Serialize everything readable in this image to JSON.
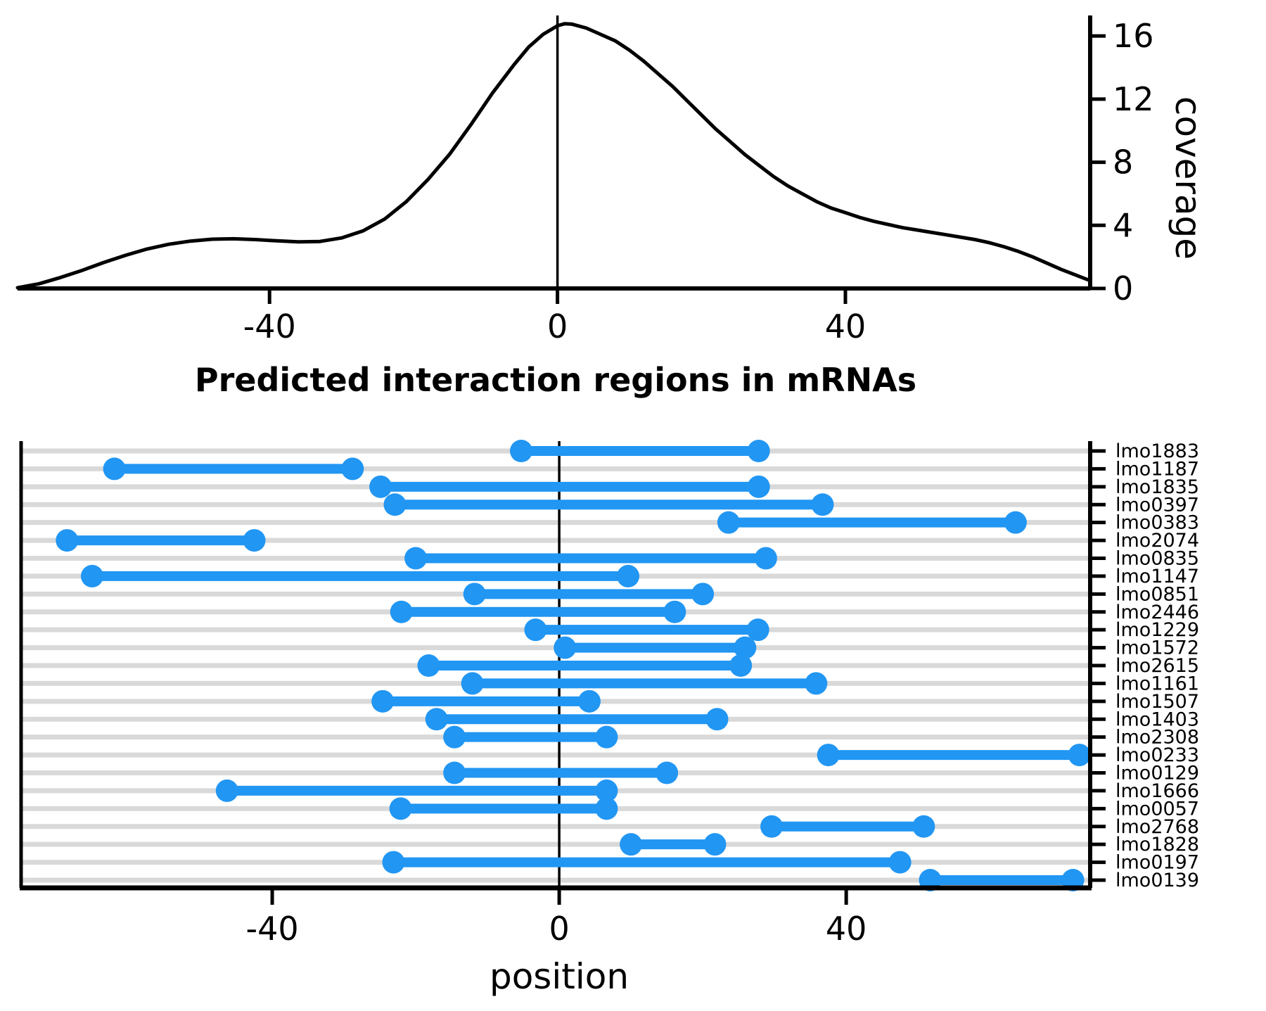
{
  "title": "Predicted interaction regions in mRNAs",
  "colors": {
    "segment": "#2196F3",
    "grid": "#D9D9D9",
    "curve": "#000000",
    "axis": "#000000"
  },
  "chart_data": [
    {
      "type": "line",
      "name": "coverage-density",
      "xlabel": "",
      "ylabel": "coverage",
      "xlim": [
        -75,
        74
      ],
      "ylim": [
        0,
        17.3
      ],
      "x_ticks": [
        -40,
        0,
        40
      ],
      "y_ticks": [
        0,
        4,
        8,
        12,
        16
      ],
      "zero_line_x": 0,
      "legend": "none",
      "grid": false,
      "points": [
        [
          -75,
          0.05
        ],
        [
          -72,
          0.3
        ],
        [
          -69,
          0.7
        ],
        [
          -66,
          1.15
        ],
        [
          -63,
          1.65
        ],
        [
          -60,
          2.1
        ],
        [
          -57,
          2.5
        ],
        [
          -54,
          2.8
        ],
        [
          -51,
          3.0
        ],
        [
          -48,
          3.12
        ],
        [
          -45,
          3.15
        ],
        [
          -42,
          3.1
        ],
        [
          -39,
          3.02
        ],
        [
          -36,
          2.95
        ],
        [
          -33,
          2.98
        ],
        [
          -30,
          3.2
        ],
        [
          -27,
          3.65
        ],
        [
          -24,
          4.4
        ],
        [
          -21,
          5.5
        ],
        [
          -18,
          6.9
        ],
        [
          -15,
          8.5
        ],
        [
          -12,
          10.4
        ],
        [
          -9,
          12.4
        ],
        [
          -6,
          14.2
        ],
        [
          -4,
          15.3
        ],
        [
          -2,
          16.1
        ],
        [
          0,
          16.65
        ],
        [
          1,
          16.78
        ],
        [
          2,
          16.75
        ],
        [
          4,
          16.5
        ],
        [
          6,
          16.1
        ],
        [
          8,
          15.7
        ],
        [
          10,
          15.1
        ],
        [
          12,
          14.4
        ],
        [
          14,
          13.6
        ],
        [
          16,
          12.8
        ],
        [
          18,
          11.9
        ],
        [
          20,
          11.0
        ],
        [
          22,
          10.1
        ],
        [
          24,
          9.3
        ],
        [
          26,
          8.5
        ],
        [
          28,
          7.8
        ],
        [
          30,
          7.1
        ],
        [
          32,
          6.5
        ],
        [
          34,
          6.0
        ],
        [
          36,
          5.5
        ],
        [
          38,
          5.1
        ],
        [
          40,
          4.8
        ],
        [
          42,
          4.5
        ],
        [
          44,
          4.25
        ],
        [
          46,
          4.05
        ],
        [
          48,
          3.85
        ],
        [
          50,
          3.7
        ],
        [
          52,
          3.55
        ],
        [
          54,
          3.4
        ],
        [
          56,
          3.25
        ],
        [
          58,
          3.1
        ],
        [
          60,
          2.9
        ],
        [
          62,
          2.65
        ],
        [
          64,
          2.35
        ],
        [
          66,
          2.0
        ],
        [
          68,
          1.6
        ],
        [
          70,
          1.2
        ],
        [
          72,
          0.85
        ],
        [
          73.7,
          0.55
        ]
      ]
    },
    {
      "type": "dumbbell",
      "name": "interaction-regions",
      "xlabel": "position",
      "ylabel": "",
      "xlim": [
        -75,
        74
      ],
      "x_ticks": [
        -40,
        0,
        40
      ],
      "zero_line_x": 0,
      "grid": "horizontal",
      "rows": [
        {
          "gene": "lmo1883",
          "start": -5.3,
          "end": 27.8
        },
        {
          "gene": "lmo1187",
          "start": -62.0,
          "end": -28.8
        },
        {
          "gene": "lmo1835",
          "start": -24.9,
          "end": 27.8
        },
        {
          "gene": "lmo0397",
          "start": -22.9,
          "end": 36.7
        },
        {
          "gene": "lmo0383",
          "start": 23.6,
          "end": 63.6
        },
        {
          "gene": "lmo2074",
          "start": -68.6,
          "end": -42.5
        },
        {
          "gene": "lmo0835",
          "start": -20.0,
          "end": 28.8
        },
        {
          "gene": "lmo1147",
          "start": -65.1,
          "end": 9.6
        },
        {
          "gene": "lmo0851",
          "start": -11.8,
          "end": 20.0
        },
        {
          "gene": "lmo2446",
          "start": -22.0,
          "end": 16.1
        },
        {
          "gene": "lmo1229",
          "start": -3.3,
          "end": 27.7
        },
        {
          "gene": "lmo1572",
          "start": 0.8,
          "end": 25.9
        },
        {
          "gene": "lmo2615",
          "start": -18.2,
          "end": 25.3
        },
        {
          "gene": "lmo1161",
          "start": -12.1,
          "end": 35.8
        },
        {
          "gene": "lmo1507",
          "start": -24.6,
          "end": 4.2
        },
        {
          "gene": "lmo1403",
          "start": -17.1,
          "end": 22.0
        },
        {
          "gene": "lmo2308",
          "start": -14.6,
          "end": 6.6
        },
        {
          "gene": "lmo0233",
          "start": 37.5,
          "end": 72.5
        },
        {
          "gene": "lmo0129",
          "start": -14.6,
          "end": 15.0
        },
        {
          "gene": "lmo1666",
          "start": -46.3,
          "end": 6.6
        },
        {
          "gene": "lmo0057",
          "start": -22.1,
          "end": 6.6
        },
        {
          "gene": "lmo2768",
          "start": 29.6,
          "end": 50.8
        },
        {
          "gene": "lmo1828",
          "start": 10.0,
          "end": 21.7
        },
        {
          "gene": "lmo0197",
          "start": -23.1,
          "end": 47.5
        },
        {
          "gene": "lmo0139",
          "start": 51.7,
          "end": 71.6
        }
      ]
    }
  ]
}
